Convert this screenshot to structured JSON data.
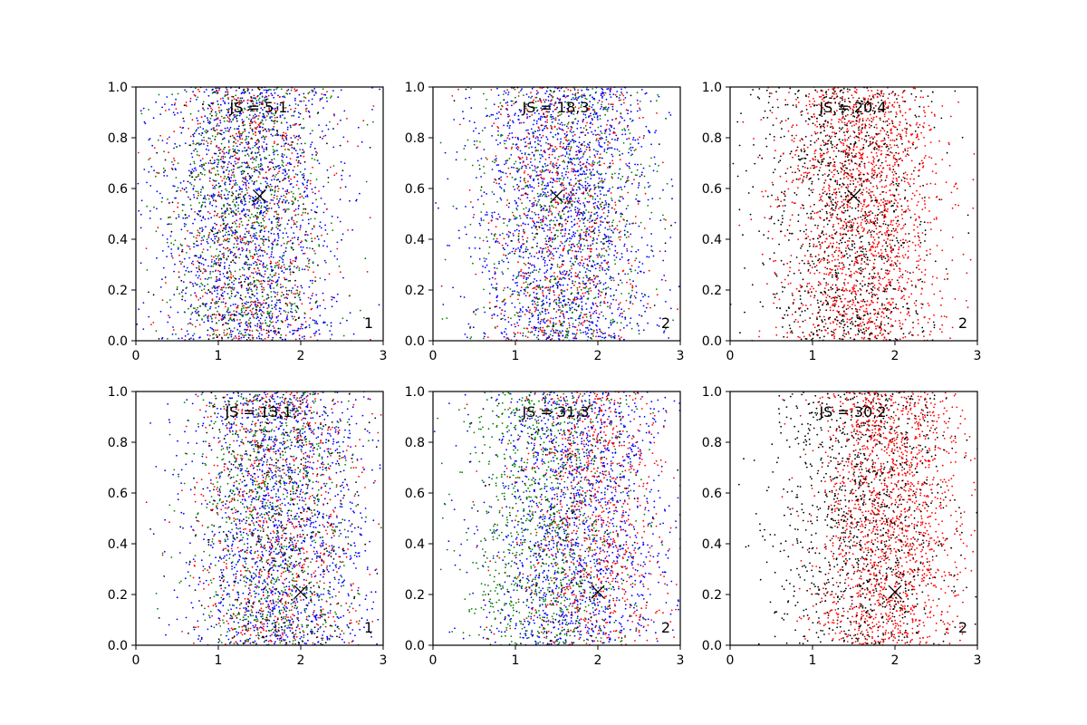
{
  "chart_data": [
    {
      "type": "scatter",
      "row": 1,
      "col": 1,
      "annotation": "JS = 5,1",
      "corner_label": "1",
      "xlim": [
        0,
        3
      ],
      "ylim": [
        0,
        1
      ],
      "xticks": [
        "0",
        "1",
        "2",
        "3"
      ],
      "yticks": [
        "0.0",
        "0.2",
        "0.4",
        "0.6",
        "0.8",
        "1.0"
      ],
      "marker": {
        "x": 1.5,
        "y": 0.57
      },
      "series": [
        {
          "color": "#0000ff",
          "count": 1500,
          "center_x": 1.4,
          "spread_x": 0.55
        },
        {
          "color": "#ff0000",
          "count": 700,
          "center_x": 1.4,
          "spread_x": 0.5
        },
        {
          "color": "#008000",
          "count": 800,
          "center_x": 1.35,
          "spread_x": 0.5
        },
        {
          "color": "#000000",
          "count": 350,
          "center_x": 1.4,
          "spread_x": 0.5
        }
      ]
    },
    {
      "type": "scatter",
      "row": 1,
      "col": 2,
      "annotation": "JS = 18,3",
      "corner_label": "2",
      "xlim": [
        0,
        3
      ],
      "ylim": [
        0,
        1
      ],
      "xticks": [
        "0",
        "1",
        "2",
        "3"
      ],
      "yticks": [
        "0.0",
        "0.2",
        "0.4",
        "0.6",
        "0.8",
        "1.0"
      ],
      "marker": {
        "x": 1.5,
        "y": 0.57
      },
      "series": [
        {
          "color": "#0000ff",
          "count": 1700,
          "center_x": 1.6,
          "spread_x": 0.55
        },
        {
          "color": "#ff0000",
          "count": 700,
          "center_x": 1.6,
          "spread_x": 0.5
        },
        {
          "color": "#008000",
          "count": 650,
          "center_x": 1.6,
          "spread_x": 0.55
        },
        {
          "color": "#000000",
          "count": 150,
          "center_x": 1.6,
          "spread_x": 0.5
        }
      ]
    },
    {
      "type": "scatter",
      "row": 1,
      "col": 3,
      "annotation": "JS = 20,4",
      "corner_label": "2",
      "xlim": [
        0,
        3
      ],
      "ylim": [
        0,
        1
      ],
      "xticks": [
        "0",
        "1",
        "2",
        "3"
      ],
      "yticks": [
        "0.0",
        "0.2",
        "0.4",
        "0.6",
        "0.8",
        "1.0"
      ],
      "marker": {
        "x": 1.5,
        "y": 0.57
      },
      "series": [
        {
          "color": "#ff0000",
          "count": 1800,
          "center_x": 1.6,
          "spread_x": 0.5
        },
        {
          "color": "#000000",
          "count": 1100,
          "center_x": 1.4,
          "spread_x": 0.5
        }
      ]
    },
    {
      "type": "scatter",
      "row": 2,
      "col": 1,
      "annotation": "JS = 13,1",
      "corner_label": "1",
      "xlim": [
        0,
        3
      ],
      "ylim": [
        0,
        1
      ],
      "xticks": [
        "0",
        "1",
        "2",
        "3"
      ],
      "yticks": [
        "0.0",
        "0.2",
        "0.4",
        "0.6",
        "0.8",
        "1.0"
      ],
      "marker": {
        "x": 2.0,
        "y": 0.21
      },
      "series": [
        {
          "color": "#0000ff",
          "count": 1500,
          "center_x": 1.75,
          "spread_x": 0.55
        },
        {
          "color": "#ff0000",
          "count": 800,
          "center_x": 1.7,
          "spread_x": 0.5
        },
        {
          "color": "#008000",
          "count": 750,
          "center_x": 1.65,
          "spread_x": 0.5
        },
        {
          "color": "#000000",
          "count": 400,
          "center_x": 1.75,
          "spread_x": 0.5
        }
      ]
    },
    {
      "type": "scatter",
      "row": 2,
      "col": 2,
      "annotation": "JS = 31,3",
      "corner_label": "2",
      "xlim": [
        0,
        3
      ],
      "ylim": [
        0,
        1
      ],
      "xticks": [
        "0",
        "1",
        "2",
        "3"
      ],
      "yticks": [
        "0.0",
        "0.2",
        "0.4",
        "0.6",
        "0.8",
        "1.0"
      ],
      "marker": {
        "x": 2.0,
        "y": 0.21
      },
      "series": [
        {
          "color": "#0000ff",
          "count": 1500,
          "center_x": 1.75,
          "spread_x": 0.55
        },
        {
          "color": "#ff0000",
          "count": 850,
          "center_x": 1.95,
          "spread_x": 0.45
        },
        {
          "color": "#008000",
          "count": 900,
          "center_x": 1.35,
          "spread_x": 0.5
        },
        {
          "color": "#000000",
          "count": 200,
          "center_x": 1.6,
          "spread_x": 0.5
        }
      ]
    },
    {
      "type": "scatter",
      "row": 2,
      "col": 3,
      "annotation": "JS = 30,2",
      "corner_label": "2",
      "xlim": [
        0,
        3
      ],
      "ylim": [
        0,
        1
      ],
      "xticks": [
        "0",
        "1",
        "2",
        "3"
      ],
      "yticks": [
        "0.0",
        "0.2",
        "0.4",
        "0.6",
        "0.8",
        "1.0"
      ],
      "marker": {
        "x": 2.0,
        "y": 0.21
      },
      "series": [
        {
          "color": "#ff0000",
          "count": 1700,
          "center_x": 1.95,
          "spread_x": 0.45
        },
        {
          "color": "#000000",
          "count": 1100,
          "center_x": 1.6,
          "spread_x": 0.55
        }
      ]
    }
  ]
}
